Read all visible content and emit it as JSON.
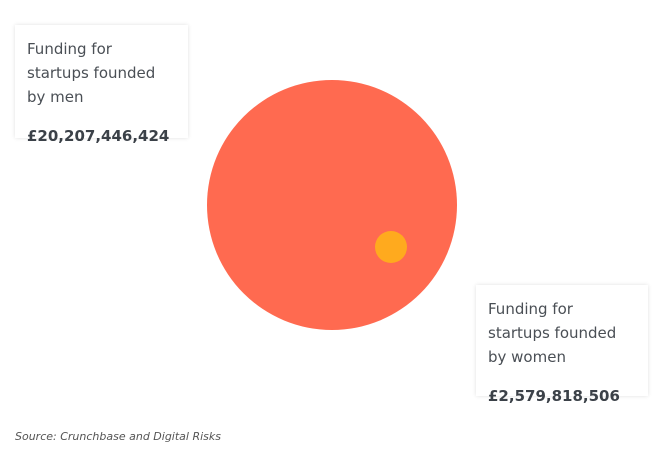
{
  "chart_data": {
    "type": "bubble",
    "series": [
      {
        "name": "Funding for startups founded by men",
        "value": 20207446424,
        "value_label": "£20,207,446,424",
        "color": "#FF6A50"
      },
      {
        "name": "Funding for startups founded by women",
        "value": 2579818506,
        "value_label": "£2,579,818,506",
        "color": "#FFAA1E"
      }
    ]
  },
  "source": "Source: Crunchbase and Digital Risks"
}
